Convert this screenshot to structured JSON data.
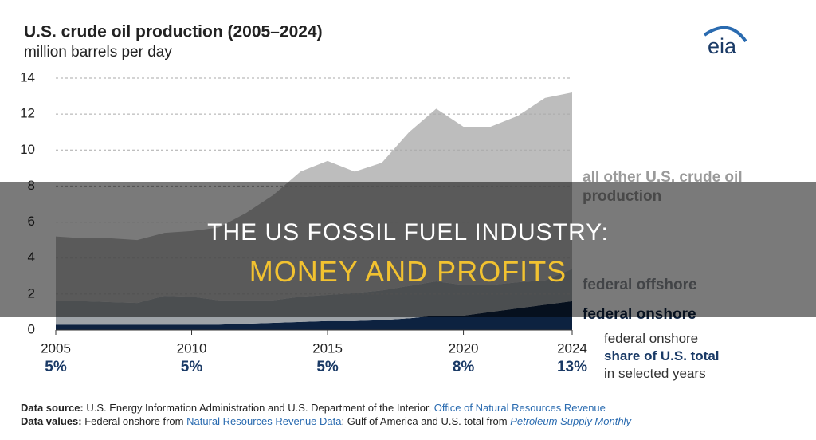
{
  "chart_data": {
    "type": "stacked-area",
    "title": "U.S. crude oil production (2005–2024)",
    "subtitle": "million barrels per day",
    "logo": "eia",
    "x": [
      2005,
      2006,
      2007,
      2008,
      2009,
      2010,
      2011,
      2012,
      2013,
      2014,
      2015,
      2016,
      2017,
      2018,
      2019,
      2020,
      2021,
      2022,
      2023,
      2024
    ],
    "xlim": [
      2005,
      2024
    ],
    "xticks": [
      2005,
      2010,
      2015,
      2020,
      2024
    ],
    "ylim": [
      0,
      14
    ],
    "yticks": [
      0,
      2,
      4,
      6,
      8,
      10,
      12,
      14
    ],
    "grid": true,
    "series": [
      {
        "name": "federal onshore",
        "color": "#0d2240",
        "values": [
          0.3,
          0.3,
          0.3,
          0.3,
          0.3,
          0.3,
          0.3,
          0.35,
          0.4,
          0.45,
          0.5,
          0.5,
          0.55,
          0.65,
          0.8,
          0.8,
          1.0,
          1.2,
          1.4,
          1.6
        ]
      },
      {
        "name": "federal offshore",
        "color": "#9ea3a8",
        "values": [
          1.3,
          1.3,
          1.25,
          1.2,
          1.6,
          1.55,
          1.35,
          1.3,
          1.25,
          1.4,
          1.45,
          1.55,
          1.65,
          1.8,
          1.9,
          1.7,
          1.5,
          1.45,
          1.35,
          1.8
        ]
      },
      {
        "name": "all other U.S. crude oil production",
        "color": "#bdbdbd",
        "values": [
          3.6,
          3.5,
          3.55,
          3.5,
          3.5,
          3.65,
          4.05,
          4.85,
          5.85,
          6.95,
          7.45,
          6.75,
          7.1,
          8.55,
          9.6,
          8.8,
          8.8,
          9.25,
          10.15,
          9.8
        ]
      }
    ],
    "shares": {
      "values": [
        5,
        5,
        5,
        8,
        13
      ],
      "value_labels": [
        "5%",
        "5%",
        "5%",
        "8%",
        "13%"
      ]
    },
    "share_note": [
      "federal onshore",
      "share of U.S. total",
      "in selected years"
    ],
    "footnotes": [
      [
        "Data source:",
        " U.S. Energy Information Administration and U.S. Department of the Interior, ",
        "Office of Natural Resources Revenue"
      ],
      [
        "Data values:",
        " Federal onshore from ",
        "Natural Resources Revenue Data",
        "; Gulf of America and U.S. total from ",
        "Petroleum Supply Monthly"
      ]
    ]
  },
  "banner": {
    "line1": "THE US FOSSIL FUEL INDUSTRY:",
    "line2": "MONEY AND PROFITS"
  }
}
